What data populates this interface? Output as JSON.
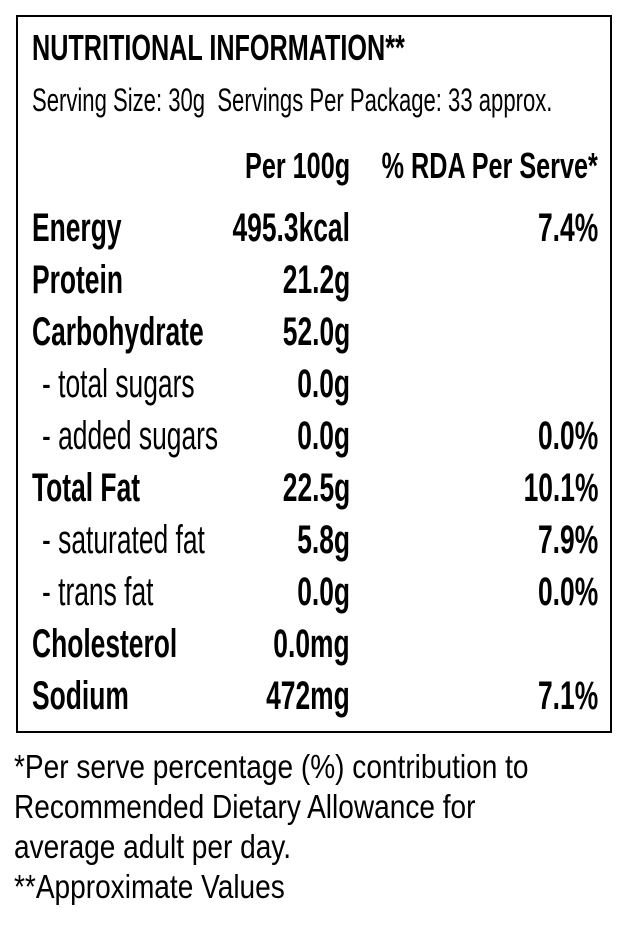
{
  "header": {
    "title": "NUTRITIONAL INFORMATION**",
    "serving": "Serving Size: 30g  Servings Per Package: 33 approx."
  },
  "columns": {
    "per100": "Per 100g",
    "rda": "% RDA Per Serve*"
  },
  "rows": [
    {
      "name": "Energy",
      "per100": "495.3kcal",
      "rda": "7.4%"
    },
    {
      "name": "Protein",
      "per100": "21.2g"
    },
    {
      "name": "Carbohydrate",
      "per100": "52.0g"
    },
    {
      "name": "- total sugars",
      "per100": "0.0g"
    },
    {
      "name": "- added sugars",
      "per100": "0.0g",
      "rda": "0.0%"
    },
    {
      "name": "Total Fat",
      "per100": "22.5g",
      "rda": "10.1%"
    },
    {
      "name": "- saturated fat",
      "per100": "5.8g",
      "rda": "7.9%"
    },
    {
      "name": "- trans fat",
      "per100": "0.0g",
      "rda": "0.0%"
    },
    {
      "name": "Cholesterol",
      "per100": "0.0mg"
    },
    {
      "name": "Sodium",
      "per100": "472mg",
      "rda": "7.1%"
    }
  ],
  "footnotes": [
    "*Per serve percentage (%) contribution to",
    "Recommended Dietary Allowance for",
    "average adult per day.",
    "**Approximate Values"
  ]
}
